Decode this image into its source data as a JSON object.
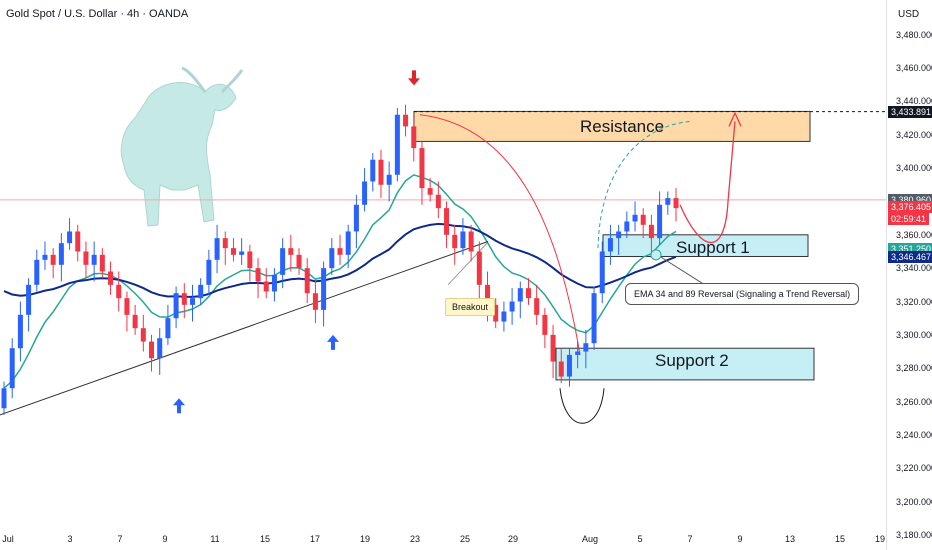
{
  "header": {
    "title": "Gold Spot / U.S. Dollar · 4h · OANDA",
    "currency": "USD"
  },
  "colors": {
    "up": "#2962ff",
    "down": "#f23645",
    "ema_fast": "#26a69a",
    "ema_slow": "#0d2a8a",
    "resistance_fill": "#ffd9a8",
    "support_fill": "#c5eff4",
    "trendline": "#333333"
  },
  "chart_data": {
    "type": "candlestick",
    "symbol": "Gold Spot / U.S. Dollar",
    "timeframe": "4h",
    "source": "OANDA",
    "ylim": [
      3180,
      3490
    ],
    "y_ticks": [
      "3,480.000",
      "3,460.000",
      "3,440.000",
      "3,420.000",
      "3,400.000",
      "3,380.000",
      "3,360.000",
      "3,340.000",
      "3,320.000",
      "3,300.000",
      "3,280.000",
      "3,260.000",
      "3,240.000",
      "3,220.000",
      "3,200.000",
      "3,180.000"
    ],
    "x_ticks": [
      "Jul",
      "3",
      "7",
      "9",
      "11",
      "15",
      "17",
      "19",
      "23",
      "25",
      "29",
      "Aug",
      "5",
      "7",
      "9",
      "13",
      "15",
      "19"
    ],
    "price_badges": [
      {
        "label": "3,433.891",
        "value": 3433.891,
        "bg": "#131722",
        "fg": "#ffffff"
      },
      {
        "label": "3,380.960",
        "value": 3380.96,
        "bg": "#555b66",
        "fg": "#ffffff"
      },
      {
        "label": "3,376.405",
        "value": 3376.405,
        "bg": "#f23645",
        "fg": "#ffffff"
      },
      {
        "label": "02:59:41",
        "value": 3369.5,
        "bg": "#f23645",
        "fg": "#ffffff"
      },
      {
        "label": "3,351.250",
        "value": 3351.25,
        "bg": "#26a69a",
        "fg": "#ffffff"
      },
      {
        "label": "3,346.467",
        "value": 3346.467,
        "bg": "#0d2a8a",
        "fg": "#ffffff"
      }
    ],
    "close_series": [
      3268,
      3292,
      3312,
      3330,
      3345,
      3348,
      3342,
      3355,
      3362,
      3350,
      3342,
      3348,
      3338,
      3330,
      3322,
      3312,
      3304,
      3296,
      3286,
      3298,
      3310,
      3325,
      3318,
      3322,
      3330,
      3345,
      3358,
      3352,
      3348,
      3350,
      3340,
      3332,
      3326,
      3336,
      3352,
      3348,
      3340,
      3325,
      3315,
      3340,
      3352,
      3348,
      3362,
      3378,
      3392,
      3405,
      3390,
      3396,
      3432,
      3425,
      3412,
      3388,
      3384,
      3376,
      3360,
      3352,
      3362,
      3350,
      3330,
      3318,
      3308,
      3314,
      3320,
      3328,
      3322,
      3312,
      3300,
      3284,
      3275,
      3288,
      3290,
      3295,
      3325,
      3350,
      3358,
      3362,
      3368,
      3372,
      3366,
      3358,
      3378,
      3382,
      3376
    ],
    "zones": [
      {
        "label": "Resistance",
        "top": 3434,
        "bottom": 3416
      },
      {
        "label": "Support 1",
        "top": 3360,
        "bottom": 3347
      },
      {
        "label": "Support 2",
        "top": 3292,
        "bottom": 3273
      }
    ],
    "annotations": [
      "Breakout",
      "EMA 34 and 89 Reversal (Signaling a Trend Reversal)"
    ]
  }
}
